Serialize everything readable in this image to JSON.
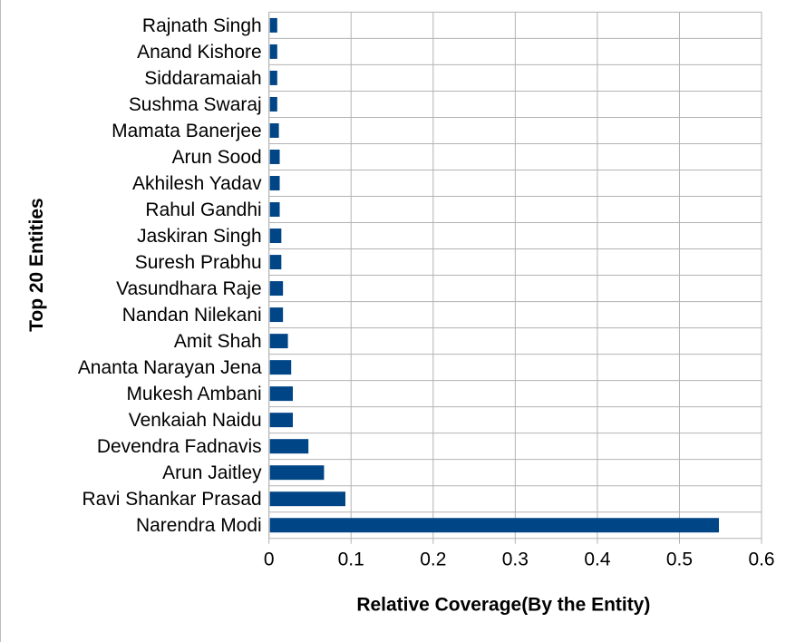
{
  "chart_data": {
    "type": "bar",
    "orientation": "horizontal",
    "title": "",
    "xlabel": "Relative Coverage(By the Entity)",
    "ylabel": "Top 20 Entities",
    "xlim": [
      0,
      0.6
    ],
    "xticks": [
      "0",
      "0.1",
      "0.2",
      "0.3",
      "0.4",
      "0.5",
      "0.6"
    ],
    "grid": true,
    "legend": "none",
    "bar_color": "#004586",
    "categories": [
      "Rajnath Singh",
      "Anand Kishore",
      "Siddaramaiah",
      "Sushma Swaraj",
      "Mamata Banerjee",
      "Arun Sood",
      "Akhilesh Yadav",
      "Rahul Gandhi",
      "Jaskiran Singh",
      "Suresh Prabhu",
      "Vasundhara Raje",
      "Nandan Nilekani",
      "Amit Shah",
      "Ananta Narayan Jena",
      "Mukesh Ambani",
      "Venkaiah Naidu",
      "Devendra Fadnavis",
      "Arun Jaitley",
      "Ravi Shankar Prasad",
      "Narendra Modi"
    ],
    "values": [
      0.009,
      0.009,
      0.009,
      0.009,
      0.011,
      0.012,
      0.012,
      0.012,
      0.014,
      0.014,
      0.016,
      0.016,
      0.022,
      0.026,
      0.028,
      0.028,
      0.047,
      0.066,
      0.092,
      0.547
    ]
  }
}
